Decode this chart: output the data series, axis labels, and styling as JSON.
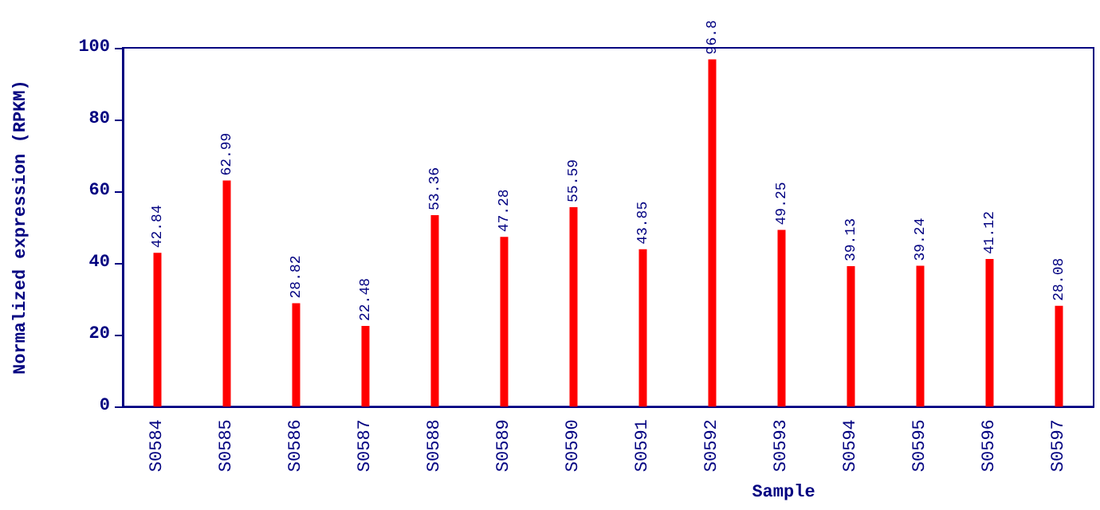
{
  "chart_data": {
    "type": "bar",
    "xlabel": "Sample",
    "ylabel": "Normalized expression (RPKM)",
    "categories": [
      "S0584",
      "S0585",
      "S0586",
      "S0587",
      "S0588",
      "S0589",
      "S0590",
      "S0591",
      "S0592",
      "S0593",
      "S0594",
      "S0595",
      "S0596",
      "S0597"
    ],
    "values": [
      42.84,
      62.99,
      28.82,
      22.48,
      53.36,
      47.28,
      55.59,
      43.85,
      96.8,
      49.25,
      39.13,
      39.24,
      41.12,
      28.08
    ],
    "data_labels": true,
    "color": "#ff0000",
    "ylim": [
      0,
      100
    ],
    "yticks": [
      0,
      20,
      40,
      60,
      80,
      100
    ],
    "grid": false
  }
}
